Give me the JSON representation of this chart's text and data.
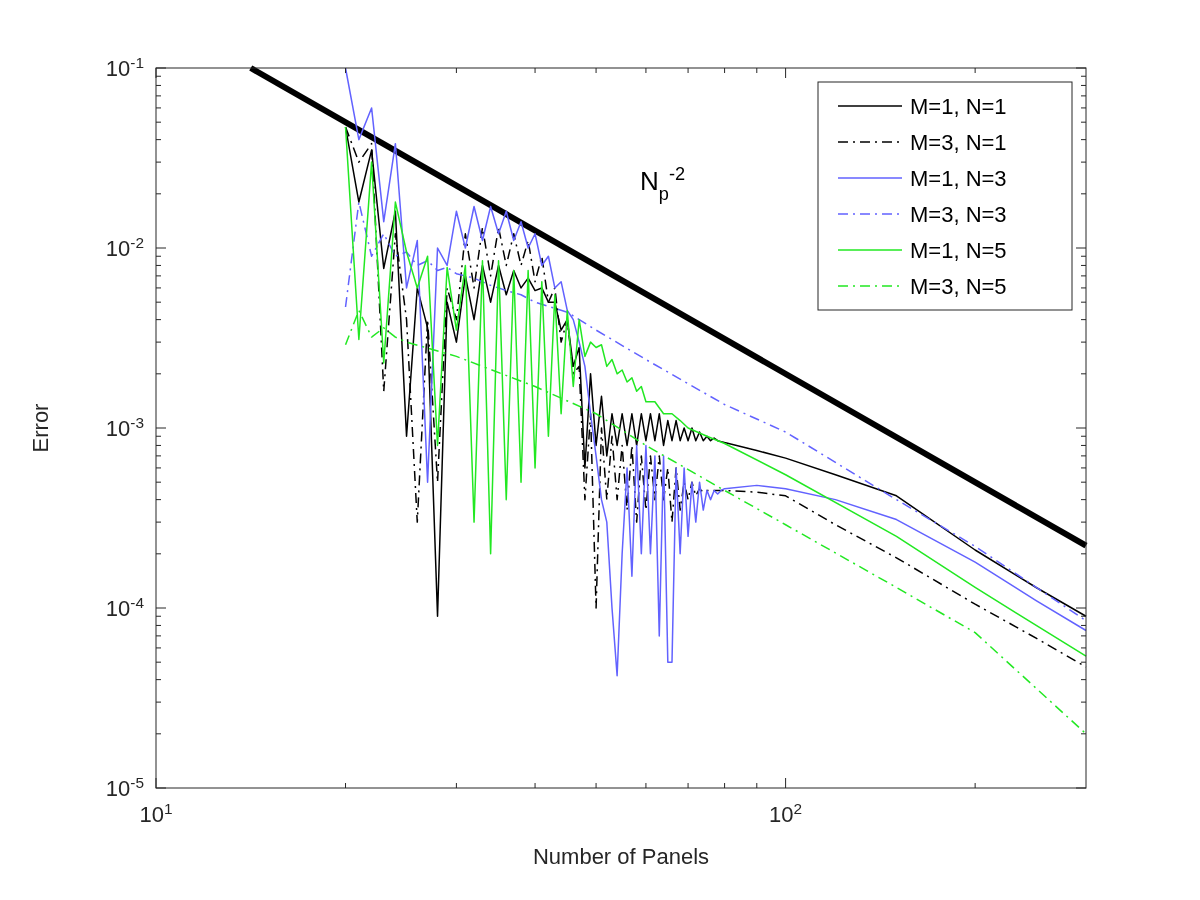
{
  "chart_data": {
    "type": "line",
    "xlabel": "Number of Panels",
    "ylabel": "Error",
    "log": "xy",
    "grid": false,
    "legend": "top right",
    "xlim": [
      10,
      300
    ],
    "ylim": [
      1e-05,
      0.1
    ],
    "xticks": [
      {
        "value": 10,
        "label": "10$^{1}$"
      },
      {
        "value": 20,
        "label": null
      },
      {
        "value": 30,
        "label": null
      },
      {
        "value": 40,
        "label": null
      },
      {
        "value": 50,
        "label": null
      },
      {
        "value": 60,
        "label": null
      },
      {
        "value": 70,
        "label": null
      },
      {
        "value": 80,
        "label": null
      },
      {
        "value": 90,
        "label": null
      },
      {
        "value": 100,
        "label": "10$^{2}$"
      },
      {
        "value": 200,
        "label": null
      }
    ],
    "yticks": [
      {
        "value": 1e-05,
        "label": "10$^{-5}$"
      },
      {
        "value": 2e-05,
        "label": null
      },
      {
        "value": 3e-05,
        "label": null
      },
      {
        "value": 4e-05,
        "label": null
      },
      {
        "value": 5e-05,
        "label": null
      },
      {
        "value": 6e-05,
        "label": null
      },
      {
        "value": 7e-05,
        "label": null
      },
      {
        "value": 8e-05,
        "label": null
      },
      {
        "value": 9e-05,
        "label": null
      },
      {
        "value": 0.0001,
        "label": "10$^{-4}$"
      },
      {
        "value": 0.0002,
        "label": null
      },
      {
        "value": 0.0003,
        "label": null
      },
      {
        "value": 0.0004,
        "label": null
      },
      {
        "value": 0.0005,
        "label": null
      },
      {
        "value": 0.0006,
        "label": null
      },
      {
        "value": 0.0007,
        "label": null
      },
      {
        "value": 0.0008,
        "label": null
      },
      {
        "value": 0.0009,
        "label": null
      },
      {
        "value": 0.001,
        "label": "10$^{-3}$"
      },
      {
        "value": 0.002,
        "label": null
      },
      {
        "value": 0.003,
        "label": null
      },
      {
        "value": 0.004,
        "label": null
      },
      {
        "value": 0.005,
        "label": null
      },
      {
        "value": 0.006,
        "label": null
      },
      {
        "value": 0.007,
        "label": null
      },
      {
        "value": 0.008,
        "label": null
      },
      {
        "value": 0.009,
        "label": null
      },
      {
        "value": 0.01,
        "label": "10$^{-2}$"
      },
      {
        "value": 0.02,
        "label": null
      },
      {
        "value": 0.03,
        "label": null
      },
      {
        "value": 0.04,
        "label": null
      },
      {
        "value": 0.05,
        "label": null
      },
      {
        "value": 0.06,
        "label": null
      },
      {
        "value": 0.07,
        "label": null
      },
      {
        "value": 0.08,
        "label": null
      },
      {
        "value": 0.09,
        "label": null
      },
      {
        "value": 0.1,
        "label": "10$^{-1}$"
      }
    ],
    "annotations": [
      "N$_{p}$$^{-2}$"
    ],
    "series": [
      {
        "type": "line",
        "color": "#000000",
        "x": [
          14.14,
          300
        ],
        "values": [
          0.1,
          0.000222
        ]
      },
      {
        "name": "M=1, N=1",
        "color": "#000000",
        "line_style": "solid",
        "x": [
          20,
          21,
          22,
          23,
          24,
          25,
          26,
          27,
          28,
          29,
          30,
          31,
          32,
          33,
          34,
          35,
          36,
          37,
          38,
          39,
          40,
          41,
          42,
          43,
          44,
          45,
          46,
          47,
          48,
          49,
          50,
          51,
          52,
          53,
          54,
          55,
          56,
          57,
          58,
          59,
          60,
          61,
          62,
          63,
          64,
          65,
          66,
          67,
          68,
          69,
          70,
          71,
          72,
          73,
          74,
          75,
          76,
          77,
          78,
          79,
          80,
          90,
          100,
          120,
          150,
          200,
          250,
          300
        ],
        "values": [
          0.047,
          0.018,
          0.035,
          0.0077,
          0.016,
          0.0009,
          0.006,
          0.0036,
          9e-05,
          0.005,
          0.003,
          0.007,
          0.004,
          0.008,
          0.005,
          0.008,
          0.0055,
          0.0075,
          0.006,
          0.0068,
          0.0058,
          0.006,
          0.005,
          0.005,
          0.0035,
          0.004,
          0.0022,
          0.0028,
          0.0006,
          0.002,
          0.0008,
          0.0015,
          0.0007,
          0.0012,
          0.0008,
          0.0012,
          0.0008,
          0.0012,
          0.0008,
          0.0012,
          0.00085,
          0.0012,
          0.00085,
          0.0012,
          0.0008,
          0.0011,
          0.00085,
          0.0011,
          0.00085,
          0.001,
          0.00085,
          0.001,
          0.00085,
          0.00095,
          0.00085,
          0.0009,
          0.00085,
          0.00088,
          0.00085,
          0.00084,
          0.00083,
          0.00075,
          0.00068,
          0.00055,
          0.00042,
          0.00021,
          0.00013,
          9e-05
        ]
      },
      {
        "name": "M=3, N=1",
        "color": "#000000",
        "line_style": "dashdot",
        "x": [
          20,
          21,
          22,
          23,
          24,
          25,
          26,
          27,
          28,
          29,
          30,
          31,
          32,
          33,
          34,
          35,
          36,
          37,
          38,
          39,
          40,
          41,
          42,
          43,
          44,
          45,
          46,
          47,
          48,
          49,
          50,
          51,
          52,
          53,
          54,
          55,
          56,
          57,
          58,
          59,
          60,
          61,
          62,
          63,
          64,
          65,
          66,
          67,
          68,
          69,
          70,
          71,
          72,
          73,
          74,
          75,
          76,
          77,
          78,
          79,
          80,
          90,
          100,
          120,
          150,
          200,
          250,
          300
        ],
        "values": [
          0.047,
          0.03,
          0.038,
          0.0016,
          0.012,
          0.004,
          0.0003,
          0.004,
          0.0005,
          0.006,
          0.004,
          0.012,
          0.006,
          0.013,
          0.007,
          0.013,
          0.008,
          0.012,
          0.008,
          0.011,
          0.0065,
          0.009,
          0.005,
          0.006,
          0.003,
          0.004,
          0.002,
          0.0022,
          0.0004,
          0.0012,
          0.0001,
          0.001,
          0.0004,
          0.0009,
          0.0004,
          0.0008,
          0.00035,
          0.0008,
          0.0003,
          0.0007,
          0.00035,
          0.0007,
          0.0004,
          0.0007,
          0.0004,
          0.0006,
          0.0003,
          0.0006,
          0.00035,
          0.0005,
          0.0004,
          0.0005,
          0.00042,
          0.00046,
          0.00044,
          0.00045,
          0.00045,
          0.00045,
          0.00045,
          0.00045,
          0.00045,
          0.00044,
          0.00042,
          0.00029,
          0.00019,
          0.000105,
          6.8e-05,
          4.7e-05
        ]
      },
      {
        "name": "M=1, N=3",
        "color": "#6262ff",
        "line_style": "solid",
        "x": [
          20,
          21,
          22,
          23,
          24,
          25,
          26,
          27,
          28,
          29,
          30,
          31,
          32,
          33,
          34,
          35,
          36,
          37,
          38,
          39,
          40,
          41,
          42,
          43,
          44,
          45,
          46,
          47,
          48,
          49,
          50,
          51,
          52,
          53,
          54,
          55,
          56,
          57,
          58,
          59,
          60,
          61,
          62,
          63,
          64,
          65,
          66,
          67,
          68,
          69,
          70,
          71,
          72,
          73,
          74,
          75,
          76,
          77,
          78,
          79,
          80,
          90,
          100,
          120,
          150,
          200,
          250,
          300
        ],
        "values": [
          0.1,
          0.04,
          0.06,
          0.014,
          0.038,
          0.006,
          0.011,
          0.0005,
          0.01,
          0.008,
          0.016,
          0.01,
          0.017,
          0.011,
          0.017,
          0.012,
          0.016,
          0.011,
          0.014,
          0.01,
          0.012,
          0.008,
          0.009,
          0.006,
          0.0065,
          0.0045,
          0.004,
          0.003,
          0.0022,
          0.0012,
          0.0007,
          0.0004,
          0.0003,
          0.0001,
          4.2e-05,
          0.0002,
          0.0006,
          0.00015,
          0.0008,
          0.0002,
          0.0008,
          0.0002,
          0.0007,
          7e-05,
          0.0007,
          5e-05,
          5e-05,
          0.0006,
          0.0002,
          0.0006,
          0.00025,
          0.0005,
          0.0003,
          0.0005,
          0.00035,
          0.00045,
          0.0004,
          0.00045,
          0.00043,
          0.00045,
          0.00046,
          0.00048,
          0.00046,
          0.0004,
          0.00031,
          0.00018,
          0.00011,
          7.5e-05
        ]
      },
      {
        "name": "M=3, N=3",
        "color": "#6262ff",
        "line_style": "dashdot",
        "x": [
          20,
          21,
          22,
          23,
          24,
          25,
          26,
          27,
          28,
          29,
          30,
          32,
          34,
          36,
          38,
          40,
          45,
          50,
          60,
          80,
          100,
          150,
          200,
          300
        ],
        "values": [
          0.0047,
          0.018,
          0.009,
          0.012,
          0.009,
          0.0095,
          0.008,
          0.0085,
          0.0075,
          0.0078,
          0.0072,
          0.0068,
          0.0062,
          0.0058,
          0.0055,
          0.005,
          0.0044,
          0.0035,
          0.0024,
          0.00135,
          0.00095,
          0.0004,
          0.00022,
          8.5e-05
        ]
      },
      {
        "name": "M=1, N=5",
        "color": "#22e822",
        "line_style": "solid",
        "x": [
          20,
          21,
          22,
          23,
          24,
          25,
          26,
          27,
          28,
          29,
          30,
          31,
          32,
          33,
          34,
          35,
          36,
          37,
          38,
          39,
          40,
          41,
          42,
          43,
          44,
          45,
          46,
          47,
          48,
          49,
          50,
          51,
          52,
          53,
          54,
          55,
          56,
          57,
          58,
          59,
          60,
          62,
          64,
          66,
          68,
          70,
          75,
          80,
          100,
          150,
          200,
          300
        ],
        "values": [
          0.047,
          0.0031,
          0.03,
          0.0023,
          0.018,
          0.0095,
          0.006,
          0.009,
          0.0008,
          0.0078,
          0.0035,
          0.008,
          0.0003,
          0.0085,
          0.0002,
          0.0085,
          0.0004,
          0.0075,
          0.0005,
          0.0075,
          0.0006,
          0.0065,
          0.0009,
          0.0055,
          0.0012,
          0.0045,
          0.0017,
          0.004,
          0.0025,
          0.003,
          0.0028,
          0.0029,
          0.0022,
          0.0024,
          0.002,
          0.0021,
          0.0018,
          0.0019,
          0.0016,
          0.0017,
          0.0014,
          0.0014,
          0.0012,
          0.0012,
          0.0011,
          0.001,
          0.0009,
          0.00082,
          0.00055,
          0.00025,
          0.00013,
          5.4e-05
        ]
      },
      {
        "name": "M=3, N=5",
        "color": "#22e822",
        "line_style": "dashdot",
        "x": [
          20,
          21,
          22,
          23,
          24,
          25,
          30,
          40,
          50,
          60,
          80,
          100,
          150,
          200,
          300
        ],
        "values": [
          0.0029,
          0.0045,
          0.0032,
          0.0036,
          0.0032,
          0.003,
          0.0025,
          0.0017,
          0.0012,
          0.0008,
          0.00045,
          0.00029,
          0.00013,
          7.3e-05,
          2e-05
        ]
      }
    ]
  }
}
